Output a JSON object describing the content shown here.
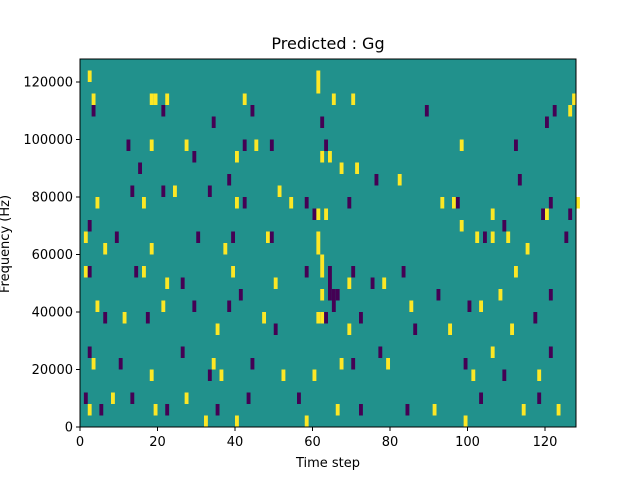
{
  "chart_data": {
    "type": "heatmap",
    "title": "Predicted : Gg",
    "xlabel": "Time step",
    "ylabel": "Frequency (Hz)",
    "xlim": [
      0,
      128
    ],
    "ylim": [
      0,
      128000
    ],
    "x_ticks": [
      0,
      20,
      40,
      60,
      80,
      100,
      120
    ],
    "y_ticks": [
      0,
      20000,
      40000,
      60000,
      80000,
      100000,
      120000
    ],
    "grid": false,
    "colors": {
      "background": "#21918c",
      "low": "#440154",
      "high": "#fde725"
    },
    "value_levels": {
      "low": -1,
      "background": 0,
      "high": 1
    },
    "rows_count": 32,
    "cols_count": 128,
    "cells": [
      [
        2,
        31,
        1
      ],
      [
        3,
        29,
        1
      ],
      [
        18,
        29,
        1
      ],
      [
        19,
        29,
        1
      ],
      [
        22,
        29,
        1
      ],
      [
        42,
        29,
        1
      ],
      [
        61,
        30,
        1
      ],
      [
        61,
        31,
        1
      ],
      [
        65,
        29,
        1
      ],
      [
        70,
        29,
        1
      ],
      [
        126,
        28,
        1
      ],
      [
        127,
        29,
        1
      ],
      [
        3,
        28,
        -1
      ],
      [
        21,
        28,
        -1
      ],
      [
        34,
        27,
        -1
      ],
      [
        44,
        28,
        -1
      ],
      [
        62,
        27,
        -1
      ],
      [
        89,
        28,
        -1
      ],
      [
        120,
        27,
        -1
      ],
      [
        122,
        28,
        -1
      ],
      [
        18,
        25,
        1
      ],
      [
        27,
        25,
        1
      ],
      [
        40,
        24,
        1
      ],
      [
        45,
        25,
        1
      ],
      [
        62,
        24,
        1
      ],
      [
        64,
        24,
        1
      ],
      [
        67,
        23,
        1
      ],
      [
        71,
        23,
        1
      ],
      [
        82,
        22,
        1
      ],
      [
        98,
        25,
        1
      ],
      [
        12,
        25,
        -1
      ],
      [
        15,
        23,
        -1
      ],
      [
        29,
        24,
        -1
      ],
      [
        38,
        22,
        -1
      ],
      [
        42,
        25,
        -1
      ],
      [
        49,
        25,
        -1
      ],
      [
        63,
        25,
        -1
      ],
      [
        76,
        22,
        -1
      ],
      [
        112,
        25,
        -1
      ],
      [
        113,
        22,
        -1
      ],
      [
        4,
        20,
        1
      ],
      [
        16,
        20,
        1
      ],
      [
        24,
        21,
        1
      ],
      [
        40,
        20,
        1
      ],
      [
        51,
        21,
        1
      ],
      [
        54,
        20,
        1
      ],
      [
        63,
        19,
        1
      ],
      [
        93,
        20,
        1
      ],
      [
        96,
        20,
        1
      ],
      [
        106,
        19,
        1
      ],
      [
        120,
        19,
        1
      ],
      [
        128,
        20,
        1
      ],
      [
        13,
        21,
        -1
      ],
      [
        21,
        21,
        -1
      ],
      [
        33,
        21,
        -1
      ],
      [
        42,
        20,
        -1
      ],
      [
        58,
        20,
        -1
      ],
      [
        60,
        19,
        -1
      ],
      [
        69,
        20,
        -1
      ],
      [
        97,
        20,
        -1
      ],
      [
        119,
        19,
        -1
      ],
      [
        121,
        20,
        -1
      ],
      [
        126,
        19,
        -1
      ],
      [
        1,
        17,
        1
      ],
      [
        6,
        16,
        1
      ],
      [
        18,
        16,
        1
      ],
      [
        37,
        16,
        1
      ],
      [
        48,
        17,
        1
      ],
      [
        98,
        18,
        1
      ],
      [
        102,
        17,
        1
      ],
      [
        106,
        17,
        1
      ],
      [
        110,
        17,
        1
      ],
      [
        115,
        16,
        1
      ],
      [
        2,
        18,
        -1
      ],
      [
        9,
        17,
        -1
      ],
      [
        30,
        17,
        -1
      ],
      [
        39,
        17,
        -1
      ],
      [
        49,
        17,
        -1
      ],
      [
        104,
        17,
        -1
      ],
      [
        109,
        18,
        -1
      ],
      [
        125,
        17,
        -1
      ],
      [
        1,
        14,
        1
      ],
      [
        16,
        14,
        1
      ],
      [
        22,
        13,
        1
      ],
      [
        39,
        14,
        1
      ],
      [
        50,
        13,
        1
      ],
      [
        69,
        13,
        1
      ],
      [
        78,
        13,
        1
      ],
      [
        108,
        12,
        1
      ],
      [
        112,
        14,
        1
      ],
      [
        2,
        14,
        -1
      ],
      [
        14,
        14,
        -1
      ],
      [
        26,
        13,
        -1
      ],
      [
        41,
        12,
        -1
      ],
      [
        58,
        14,
        -1
      ],
      [
        70,
        14,
        -1
      ],
      [
        75,
        13,
        -1
      ],
      [
        83,
        14,
        -1
      ],
      [
        92,
        12,
        -1
      ],
      [
        121,
        12,
        -1
      ],
      [
        4,
        11,
        1
      ],
      [
        11,
        10,
        1
      ],
      [
        21,
        11,
        1
      ],
      [
        35,
        9,
        1
      ],
      [
        47,
        10,
        1
      ],
      [
        69,
        9,
        1
      ],
      [
        85,
        11,
        1
      ],
      [
        95,
        9,
        1
      ],
      [
        103,
        11,
        1
      ],
      [
        111,
        9,
        1
      ],
      [
        6,
        10,
        -1
      ],
      [
        17,
        10,
        -1
      ],
      [
        29,
        11,
        -1
      ],
      [
        38,
        11,
        -1
      ],
      [
        50,
        9,
        -1
      ],
      [
        65,
        11,
        -1
      ],
      [
        72,
        10,
        -1
      ],
      [
        86,
        9,
        -1
      ],
      [
        100,
        11,
        -1
      ],
      [
        117,
        10,
        -1
      ],
      [
        3,
        6,
        1
      ],
      [
        18,
        5,
        1
      ],
      [
        34,
        6,
        1
      ],
      [
        36,
        5,
        1
      ],
      [
        52,
        5,
        1
      ],
      [
        67,
        6,
        1
      ],
      [
        79,
        6,
        1
      ],
      [
        101,
        5,
        1
      ],
      [
        106,
        7,
        1
      ],
      [
        118,
        5,
        1
      ],
      [
        2,
        7,
        -1
      ],
      [
        10,
        6,
        -1
      ],
      [
        26,
        7,
        -1
      ],
      [
        33,
        5,
        -1
      ],
      [
        44,
        6,
        -1
      ],
      [
        70,
        6,
        -1
      ],
      [
        77,
        7,
        -1
      ],
      [
        99,
        6,
        -1
      ],
      [
        109,
        5,
        -1
      ],
      [
        121,
        7,
        -1
      ],
      [
        2,
        2,
        1
      ],
      [
        8,
        3,
        1
      ],
      [
        19,
        2,
        1
      ],
      [
        27,
        3,
        1
      ],
      [
        32,
        1,
        1
      ],
      [
        40,
        1,
        1
      ],
      [
        58,
        1,
        1
      ],
      [
        66,
        2,
        1
      ],
      [
        91,
        2,
        1
      ],
      [
        99,
        1,
        1
      ],
      [
        114,
        2,
        1
      ],
      [
        123,
        2,
        1
      ],
      [
        1,
        3,
        -1
      ],
      [
        5,
        2,
        -1
      ],
      [
        13,
        3,
        -1
      ],
      [
        22,
        2,
        -1
      ],
      [
        35,
        2,
        -1
      ],
      [
        43,
        3,
        -1
      ],
      [
        56,
        3,
        -1
      ],
      [
        72,
        2,
        -1
      ],
      [
        84,
        2,
        -1
      ],
      [
        103,
        3,
        -1
      ],
      [
        118,
        3,
        -1
      ],
      [
        60,
        5,
        1
      ],
      [
        61,
        10,
        1
      ],
      [
        61,
        16,
        1
      ],
      [
        61,
        17,
        1
      ],
      [
        61,
        19,
        1
      ],
      [
        62,
        10,
        1
      ],
      [
        62,
        12,
        1
      ],
      [
        62,
        14,
        1
      ],
      [
        62,
        15,
        1
      ],
      [
        63,
        10,
        -1
      ],
      [
        64,
        12,
        -1
      ],
      [
        64,
        13,
        -1
      ],
      [
        65,
        12,
        -1
      ],
      [
        66,
        12,
        -1
      ],
      [
        64,
        14,
        -1
      ]
    ]
  }
}
